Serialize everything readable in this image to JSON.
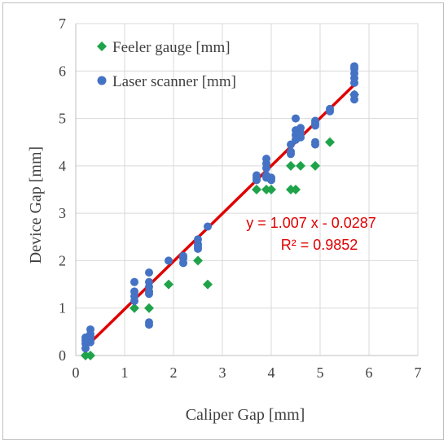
{
  "chart_data": {
    "type": "scatter",
    "xlabel": "Caliper Gap [mm]",
    "ylabel": "Device Gap [mm]",
    "xlim": [
      0,
      7
    ],
    "ylim": [
      0,
      7
    ],
    "x_ticks": [
      "0",
      "1",
      "2",
      "3",
      "4",
      "5",
      "6",
      "7"
    ],
    "y_ticks": [
      "0",
      "1",
      "2",
      "3",
      "4",
      "5",
      "6",
      "7"
    ],
    "grid": true,
    "legend_position": "top-left",
    "series": [
      {
        "name": "Feeler gauge [mm]",
        "marker": "diamond",
        "color": "#1fa34a",
        "points": [
          [
            0.2,
            0.0
          ],
          [
            0.3,
            0.0
          ],
          [
            1.2,
            1.0
          ],
          [
            1.5,
            1.0
          ],
          [
            1.9,
            1.5
          ],
          [
            2.7,
            1.5
          ],
          [
            2.5,
            2.0
          ],
          [
            3.7,
            3.5
          ],
          [
            3.9,
            3.5
          ],
          [
            4.0,
            3.5
          ],
          [
            4.4,
            3.5
          ],
          [
            4.5,
            3.5
          ],
          [
            4.4,
            4.0
          ],
          [
            4.6,
            4.0
          ],
          [
            4.9,
            4.0
          ],
          [
            5.2,
            4.5
          ],
          [
            5.7,
            5.5
          ]
        ]
      },
      {
        "name": "Laser scanner [mm]",
        "marker": "circle",
        "color": "#4472c4",
        "points": [
          [
            0.2,
            0.15
          ],
          [
            0.2,
            0.25
          ],
          [
            0.2,
            0.32
          ],
          [
            0.2,
            0.38
          ],
          [
            0.25,
            0.3
          ],
          [
            0.3,
            0.28
          ],
          [
            0.3,
            0.35
          ],
          [
            0.3,
            0.45
          ],
          [
            0.3,
            0.55
          ],
          [
            0.3,
            0.4
          ],
          [
            1.2,
            1.15
          ],
          [
            1.2,
            1.25
          ],
          [
            1.2,
            1.35
          ],
          [
            1.2,
            1.55
          ],
          [
            1.5,
            0.65
          ],
          [
            1.5,
            0.7
          ],
          [
            1.5,
            1.3
          ],
          [
            1.5,
            1.35
          ],
          [
            1.5,
            1.45
          ],
          [
            1.5,
            1.55
          ],
          [
            1.5,
            1.75
          ],
          [
            1.9,
            2.0
          ],
          [
            2.2,
            1.95
          ],
          [
            2.2,
            2.05
          ],
          [
            2.2,
            2.1
          ],
          [
            2.5,
            2.25
          ],
          [
            2.5,
            2.3
          ],
          [
            2.5,
            2.35
          ],
          [
            2.5,
            2.45
          ],
          [
            2.7,
            2.72
          ],
          [
            3.7,
            3.7
          ],
          [
            3.7,
            3.75
          ],
          [
            3.7,
            3.8
          ],
          [
            3.9,
            3.75
          ],
          [
            3.9,
            3.8
          ],
          [
            3.9,
            3.95
          ],
          [
            3.9,
            4.05
          ],
          [
            3.9,
            4.15
          ],
          [
            4.0,
            3.7
          ],
          [
            4.0,
            3.75
          ],
          [
            4.4,
            4.25
          ],
          [
            4.4,
            4.3
          ],
          [
            4.4,
            4.45
          ],
          [
            4.5,
            4.55
          ],
          [
            4.5,
            4.65
          ],
          [
            4.5,
            4.75
          ],
          [
            4.5,
            5.0
          ],
          [
            4.6,
            4.6
          ],
          [
            4.6,
            4.7
          ],
          [
            4.6,
            4.8
          ],
          [
            4.9,
            4.45
          ],
          [
            4.9,
            4.5
          ],
          [
            4.9,
            4.85
          ],
          [
            4.9,
            4.9
          ],
          [
            4.9,
            4.95
          ],
          [
            5.2,
            5.15
          ],
          [
            5.2,
            5.2
          ],
          [
            5.7,
            5.4
          ],
          [
            5.7,
            5.5
          ],
          [
            5.7,
            5.75
          ],
          [
            5.7,
            5.85
          ],
          [
            5.7,
            5.95
          ],
          [
            5.7,
            6.05
          ],
          [
            5.7,
            6.1
          ]
        ]
      }
    ],
    "trendline": {
      "slope": 1.007,
      "intercept": -0.0287,
      "x_range": [
        0.2,
        5.7
      ],
      "color": "#e00000",
      "equation_label": "y = 1.007 x - 0.0287",
      "r2_label": "R² = 0.9852"
    }
  }
}
